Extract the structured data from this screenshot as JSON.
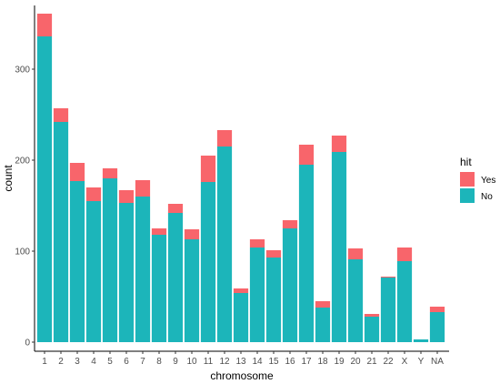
{
  "chart_data": {
    "type": "bar",
    "stacked": true,
    "xlabel": "chromosome",
    "ylabel": "count",
    "ylim": [
      0,
      370
    ],
    "yticks": [
      0,
      100,
      200,
      300
    ],
    "categories": [
      "1",
      "2",
      "3",
      "4",
      "5",
      "6",
      "7",
      "8",
      "9",
      "10",
      "11",
      "12",
      "13",
      "14",
      "15",
      "16",
      "17",
      "18",
      "19",
      "20",
      "21",
      "22",
      "X",
      "Y",
      "NA"
    ],
    "series": [
      {
        "name": "No",
        "color": "#1CB5BA",
        "values": [
          336,
          242,
          177,
          155,
          180,
          153,
          160,
          118,
          142,
          113,
          176,
          215,
          54,
          104,
          93,
          125,
          195,
          38,
          209,
          91,
          28,
          71,
          89,
          3,
          33
        ]
      },
      {
        "name": "Yes",
        "color": "#F8656B",
        "values": [
          25,
          15,
          20,
          15,
          11,
          14,
          18,
          7,
          10,
          11,
          29,
          18,
          5,
          9,
          8,
          9,
          22,
          7,
          18,
          12,
          3,
          1,
          15,
          0,
          6
        ]
      }
    ],
    "legend": {
      "title": "hit",
      "position": "right",
      "entries": [
        "Yes",
        "No"
      ]
    },
    "grid": false
  }
}
